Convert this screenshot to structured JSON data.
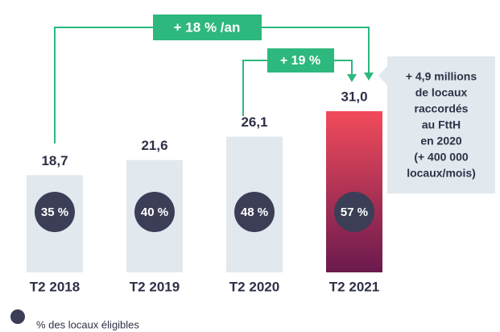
{
  "chart_data": {
    "type": "bar",
    "categories": [
      "T2 2018",
      "T2 2019",
      "T2 2020",
      "T2 2021"
    ],
    "values": [
      18.7,
      21.6,
      26.1,
      31.0
    ],
    "value_labels": [
      "18,7",
      "21,6",
      "26,1",
      "31,0"
    ],
    "color": "#e1e8ee",
    "highlight_colors": [
      "#f24b5b",
      "#6a1a4e"
    ],
    "eligible": {
      "name": "% des locaux éligibles",
      "color": "#3b3e56",
      "values": [
        35,
        40,
        48,
        57
      ],
      "value_labels": [
        "35 %",
        "40 %",
        "48 %",
        "57 %"
      ]
    },
    "annotations": {
      "growth_year": "+ 18 % /an",
      "growth_last": "+ 19 %",
      "callout": [
        "+ 4,9 millions",
        "de locaux",
        "raccordés",
        "au FttH",
        "en 2020",
        "(+ 400 000",
        "locaux/mois)"
      ]
    },
    "arrow_color": "#2db87d"
  }
}
